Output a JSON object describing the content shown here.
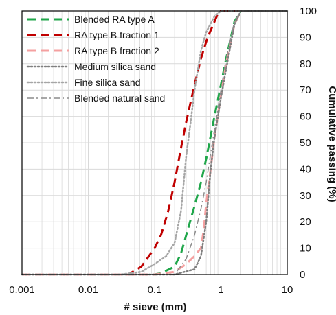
{
  "chart_data": {
    "type": "line",
    "title": "",
    "xlabel": "# sieve (mm)",
    "ylabel": "Cumulative passing (%)",
    "x_scale": "log",
    "xlim": [
      0.001,
      10
    ],
    "ylim": [
      0,
      100
    ],
    "x_ticks": [
      "0.001",
      "0.01",
      "0.1",
      "1",
      "10"
    ],
    "y_ticks": [
      "0",
      "10",
      "20",
      "30",
      "40",
      "50",
      "60",
      "70",
      "80",
      "90",
      "100"
    ],
    "grid": true,
    "legend_position": "top-left",
    "series": [
      {
        "name": "Blended RA type A",
        "color": "#1fa64a",
        "style": "dashed",
        "x": [
          0.001,
          0.1,
          0.125,
          0.2,
          0.25,
          0.3,
          0.4,
          0.5,
          0.6,
          0.8,
          1.0,
          1.2,
          1.6,
          2.0,
          10.0
        ],
        "y": [
          0,
          0,
          0.5,
          3,
          8,
          15,
          26,
          35,
          44,
          60,
          72,
          82,
          96,
          100,
          100
        ]
      },
      {
        "name": "RA type B fraction 1",
        "color": "#c00000",
        "style": "dashed",
        "x": [
          0.001,
          0.04,
          0.063,
          0.1,
          0.125,
          0.16,
          0.2,
          0.25,
          0.3,
          0.4,
          0.5,
          0.63,
          0.8,
          0.9,
          1.0,
          10.0
        ],
        "y": [
          0,
          0,
          3,
          10,
          15,
          24,
          35,
          48,
          58,
          72,
          82,
          90,
          96,
          99,
          100,
          100
        ]
      },
      {
        "name": "RA type B fraction 2",
        "color": "#f4a0a0",
        "style": "dashed",
        "x": [
          0.001,
          0.1,
          0.2,
          0.3,
          0.4,
          0.5,
          0.55,
          0.6,
          0.7,
          0.8,
          1.0,
          1.2,
          1.6,
          2.0,
          10.0
        ],
        "y": [
          0,
          0,
          1,
          4,
          7,
          10,
          17,
          27,
          40,
          52,
          68,
          80,
          95,
          100,
          100
        ]
      },
      {
        "name": "Medium silica sand",
        "color": "#7f7f7f",
        "style": "dotted",
        "x": [
          0.001,
          0.2,
          0.4,
          0.5,
          0.6,
          0.7,
          0.8,
          1.0,
          1.2,
          1.6,
          2.0,
          10.0
        ],
        "y": [
          0,
          0,
          2,
          7,
          20,
          40,
          52,
          67,
          78,
          95,
          100,
          100
        ]
      },
      {
        "name": "Fine silica sand",
        "color": "#a6a6a6",
        "style": "dotted",
        "x": [
          0.001,
          0.03,
          0.063,
          0.1,
          0.15,
          0.2,
          0.25,
          0.3,
          0.35,
          0.4,
          0.5,
          0.6,
          0.8,
          1.0,
          10.0
        ],
        "y": [
          0,
          0,
          1,
          4,
          7,
          12,
          24,
          45,
          58,
          70,
          85,
          92,
          98,
          100,
          100
        ]
      },
      {
        "name": "Blended natural sand",
        "color": "#8c8c8c",
        "style": "dashdot",
        "x": [
          0.001,
          0.2,
          0.3,
          0.4,
          0.5,
          0.6,
          0.7,
          0.8,
          1.0,
          1.2,
          1.6,
          2.0,
          10.0
        ],
        "y": [
          0,
          0,
          6,
          15,
          25,
          35,
          46,
          55,
          70,
          82,
          96,
          100,
          100
        ]
      }
    ]
  }
}
